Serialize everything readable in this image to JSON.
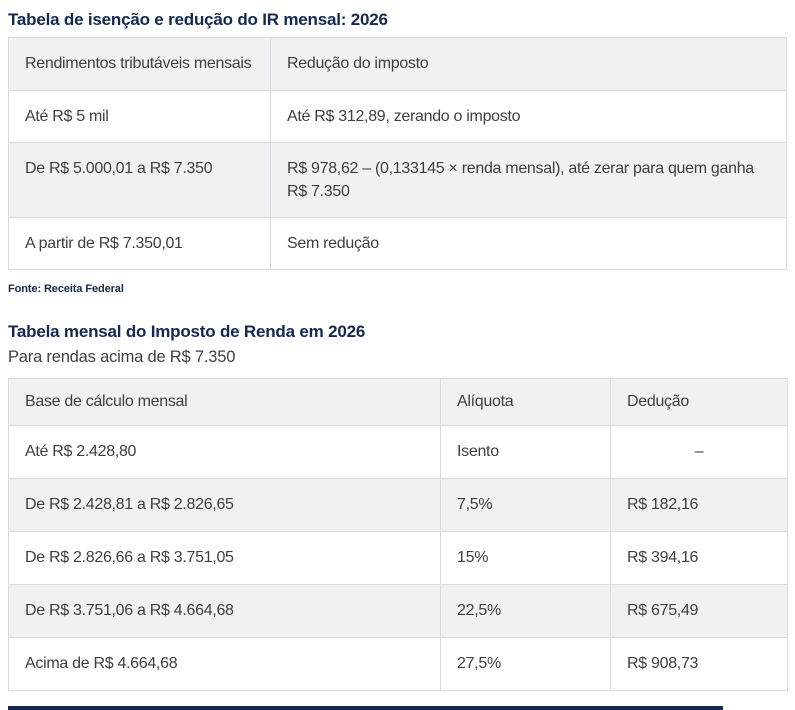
{
  "colors": {
    "title_navy": "#14294f",
    "body_text": "#3f3f3f",
    "header_row_bg": "#f1f1f2",
    "table_border": "#dbdbe1",
    "bottom_bar": "#14294f"
  },
  "t1": {
    "title": "Tabela de isenção e redução do IR mensal: 2026",
    "headers": [
      "Rendimentos tributáveis mensais",
      "Redução do imposto"
    ],
    "rows": [
      [
        "Até R$ 5 mil",
        "Até R$ 312,89, zerando o imposto"
      ],
      [
        "De R$ 5.000,01 a R$ 7.350",
        "R$ 978,62 – (0,133145 × renda mensal), até zerar para quem ganha R$ 7.350"
      ],
      [
        "A partir de R$ 7.350,01",
        "Sem redução"
      ]
    ],
    "source": "Fonte: Receita Federal"
  },
  "t2": {
    "title": "Tabela mensal do Imposto de Renda em 2026",
    "subtitle": "Para rendas acima de R$ 7.350",
    "headers": [
      "Base de cálculo mensal",
      "Alíquota",
      "Dedução"
    ],
    "rows": [
      [
        "Até R$ 2.428,80",
        "Isento",
        "–"
      ],
      [
        "De R$ 2.428,81 a R$ 2.826,65",
        "7,5%",
        "R$ 182,16"
      ],
      [
        "De R$ 2.826,66 a R$ 3.751,05",
        "15%",
        "R$ 394,16"
      ],
      [
        "De R$ 3.751,06 a R$ 4.664,68",
        "22,5%",
        "R$ 675,49"
      ],
      [
        "Acima de R$ 4.664,68",
        "27,5%",
        "R$ 908,73"
      ]
    ]
  }
}
